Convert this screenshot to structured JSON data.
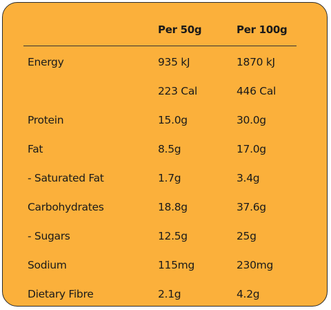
{
  "table": {
    "headers": [
      "",
      "Per 50g",
      "Per 100g"
    ],
    "rows": [
      {
        "nutrient": "Energy",
        "per50": "935 kJ",
        "per100": "1870 kJ"
      },
      {
        "nutrient": "",
        "per50": "223 Cal",
        "per100": "446 Cal"
      },
      {
        "nutrient": "Protein",
        "per50": "15.0g",
        "per100": "30.0g"
      },
      {
        "nutrient": "Fat",
        "per50": "8.5g",
        "per100": "17.0g"
      },
      {
        "nutrient": "- Saturated Fat",
        "per50": "1.7g",
        "per100": "3.4g"
      },
      {
        "nutrient": "Carbohydrates",
        "per50": "18.8g",
        "per100": "37.6g"
      },
      {
        "nutrient": "- Sugars",
        "per50": "12.5g",
        "per100": "25g"
      },
      {
        "nutrient": "Sodium",
        "per50": "115mg",
        "per100": "230mg"
      },
      {
        "nutrient": "Dietary Fibre",
        "per50": "2.1g",
        "per100": "4.2g"
      }
    ]
  },
  "colors": {
    "background": "#FBB03B",
    "border": "#2a2a2a",
    "text": "#1a1a1a"
  }
}
